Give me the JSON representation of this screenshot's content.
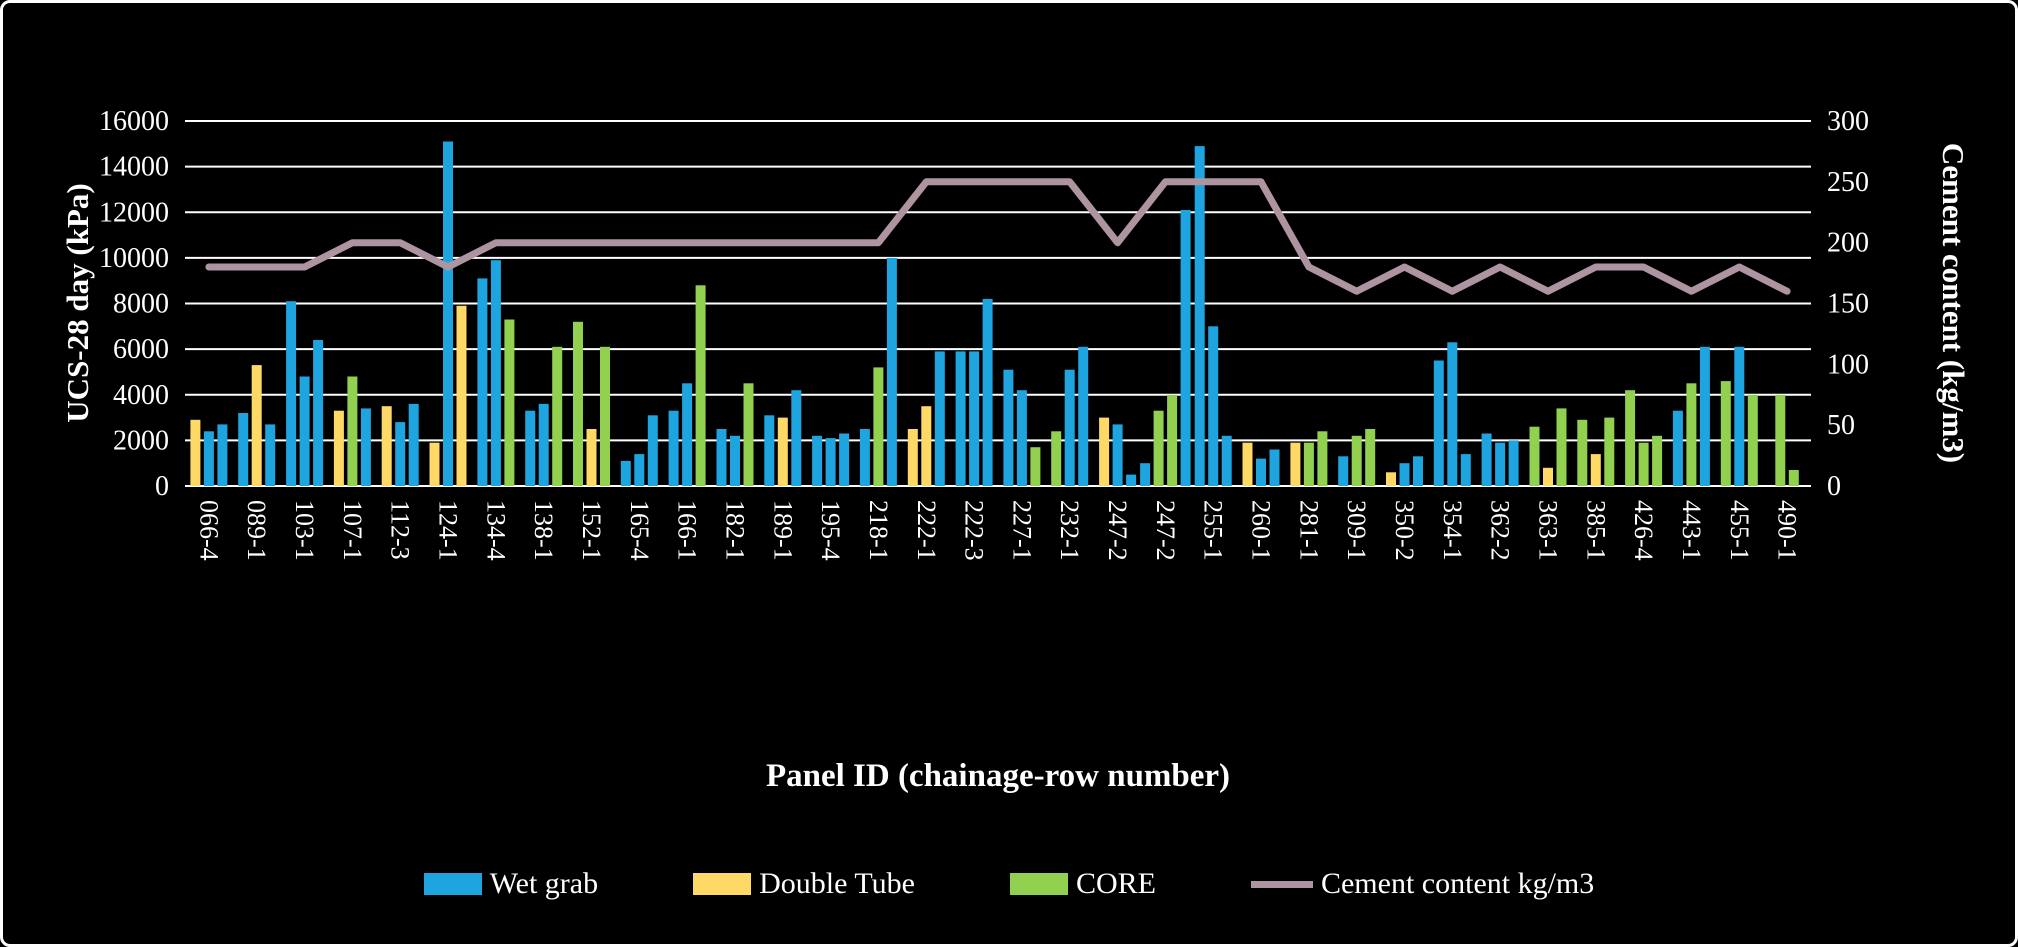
{
  "axes": {
    "left_title": "UCS-28 day (kPa)",
    "right_title": "Cement content (kg/m3)",
    "x_title": "Panel ID (chainage-row number)"
  },
  "legend": {
    "items": [
      {
        "label": "Wet grab",
        "marker": "swatch",
        "color": "#1EA4DF"
      },
      {
        "label": "Double Tube",
        "marker": "swatch",
        "color": "#FFD966"
      },
      {
        "label": "CORE",
        "marker": "swatch",
        "color": "#92D050"
      },
      {
        "label": "Cement content kg/m3",
        "marker": "line",
        "color": "#AE93A0"
      }
    ]
  },
  "chart_data": {
    "type": "bar+line",
    "grid_color": "#FFFFFF",
    "text_color": "#FFFFFF",
    "y_left": {
      "label": "UCS-28 day (kPa)",
      "min": 0,
      "max": 16000,
      "step": 2000,
      "ticks": [
        0,
        2000,
        4000,
        6000,
        8000,
        10000,
        12000,
        14000,
        16000
      ]
    },
    "y_right": {
      "label": "Cement content (kg/m3)",
      "min": 0,
      "max": 300,
      "step": 50,
      "ticks": [
        0,
        50,
        100,
        150,
        200,
        250,
        300
      ]
    },
    "bar_series": [
      "Wet grab",
      "Double Tube",
      "CORE"
    ],
    "bar_series_colors": {
      "Wet grab": "#1EA4DF",
      "Double Tube": "#FFD966",
      "CORE": "#92D050"
    },
    "line_series": {
      "name": "Cement content kg/m3",
      "axis": "right",
      "color": "#AE93A0"
    },
    "categories": [
      {
        "label": "066-4",
        "cement": 180,
        "bars": [
          [
            "Double Tube",
            2900
          ],
          [
            "Wet grab",
            2400
          ],
          [
            "Wet grab",
            2700
          ]
        ]
      },
      {
        "label": "089-1",
        "cement": 180,
        "bars": [
          [
            "Wet grab",
            3200
          ],
          [
            "Double Tube",
            5300
          ],
          [
            "Wet grab",
            2700
          ]
        ]
      },
      {
        "label": "103-1",
        "cement": 180,
        "bars": [
          [
            "Wet grab",
            8100
          ],
          [
            "Wet grab",
            4800
          ],
          [
            "Wet grab",
            6400
          ]
        ]
      },
      {
        "label": "107-1",
        "cement": 200,
        "bars": [
          [
            "Double Tube",
            3300
          ],
          [
            "CORE",
            4800
          ],
          [
            "Wet grab",
            3400
          ]
        ]
      },
      {
        "label": "112-3",
        "cement": 200,
        "bars": [
          [
            "Double Tube",
            3500
          ],
          [
            "Wet grab",
            2800
          ],
          [
            "Wet grab",
            3600
          ]
        ]
      },
      {
        "label": "124-1",
        "cement": 180,
        "bars": [
          [
            "Double Tube",
            1900
          ],
          [
            "Wet grab",
            15100
          ],
          [
            "Double Tube",
            7900
          ]
        ]
      },
      {
        "label": "134-4",
        "cement": 200,
        "bars": [
          [
            "Wet grab",
            9100
          ],
          [
            "Wet grab",
            9900
          ],
          [
            "CORE",
            7300
          ]
        ]
      },
      {
        "label": "138-1",
        "cement": 200,
        "bars": [
          [
            "Wet grab",
            3300
          ],
          [
            "Wet grab",
            3600
          ],
          [
            "CORE",
            6100
          ]
        ]
      },
      {
        "label": "152-1",
        "cement": 200,
        "bars": [
          [
            "CORE",
            7200
          ],
          [
            "Double Tube",
            2500
          ],
          [
            "CORE",
            6100
          ]
        ]
      },
      {
        "label": "165-4",
        "cement": 200,
        "bars": [
          [
            "Wet grab",
            1100
          ],
          [
            "Wet grab",
            1400
          ],
          [
            "Wet grab",
            3100
          ]
        ]
      },
      {
        "label": "166-1",
        "cement": 200,
        "bars": [
          [
            "Wet grab",
            3300
          ],
          [
            "Wet grab",
            4500
          ],
          [
            "CORE",
            8800
          ]
        ]
      },
      {
        "label": "182-1",
        "cement": 200,
        "bars": [
          [
            "Wet grab",
            2500
          ],
          [
            "Wet grab",
            2200
          ],
          [
            "CORE",
            4500
          ]
        ]
      },
      {
        "label": "189-1",
        "cement": 200,
        "bars": [
          [
            "Wet grab",
            3100
          ],
          [
            "Double Tube",
            3000
          ],
          [
            "Wet grab",
            4200
          ]
        ]
      },
      {
        "label": "195-4",
        "cement": 200,
        "bars": [
          [
            "Wet grab",
            2200
          ],
          [
            "Wet grab",
            2100
          ],
          [
            "Wet grab",
            2300
          ]
        ]
      },
      {
        "label": "218-1",
        "cement": 200,
        "bars": [
          [
            "Wet grab",
            2500
          ],
          [
            "CORE",
            5200
          ],
          [
            "Wet grab",
            10000
          ]
        ]
      },
      {
        "label": "222-1",
        "cement": 250,
        "bars": [
          [
            "Double Tube",
            2500
          ],
          [
            "Double Tube",
            3500
          ],
          [
            "Wet grab",
            5900
          ]
        ]
      },
      {
        "label": "222-3",
        "cement": 250,
        "bars": [
          [
            "Wet grab",
            5900
          ],
          [
            "Wet grab",
            5900
          ],
          [
            "Wet grab",
            8200
          ]
        ]
      },
      {
        "label": "227-1",
        "cement": 250,
        "bars": [
          [
            "Wet grab",
            5100
          ],
          [
            "Wet grab",
            4200
          ],
          [
            "CORE",
            1700
          ]
        ]
      },
      {
        "label": "232-1",
        "cement": 250,
        "bars": [
          [
            "CORE",
            2400
          ],
          [
            "Wet grab",
            5100
          ],
          [
            "Wet grab",
            6100
          ]
        ]
      },
      {
        "label": "247-2",
        "cement": 200,
        "bars": [
          [
            "Double Tube",
            3000
          ],
          [
            "Wet grab",
            2700
          ],
          [
            "Wet grab",
            500
          ]
        ]
      },
      {
        "label": "247-2",
        "cement": 250,
        "bars": [
          [
            "Wet grab",
            1000
          ],
          [
            "CORE",
            3300
          ],
          [
            "CORE",
            4000
          ],
          [
            "Wet grab",
            12100
          ]
        ]
      },
      {
        "label": "255-1",
        "cement": 250,
        "bars": [
          [
            "Wet grab",
            14900
          ],
          [
            "Wet grab",
            7000
          ],
          [
            "Wet grab",
            2200
          ]
        ]
      },
      {
        "label": "260-1",
        "cement": 250,
        "bars": [
          [
            "Double Tube",
            1900
          ],
          [
            "Wet grab",
            1200
          ],
          [
            "Wet grab",
            1600
          ]
        ]
      },
      {
        "label": "281-1",
        "cement": 180,
        "bars": [
          [
            "Double Tube",
            1900
          ],
          [
            "CORE",
            1900
          ],
          [
            "CORE",
            2400
          ]
        ]
      },
      {
        "label": "309-1",
        "cement": 160,
        "bars": [
          [
            "Wet grab",
            1300
          ],
          [
            "CORE",
            2200
          ],
          [
            "CORE",
            2500
          ]
        ]
      },
      {
        "label": "350-2",
        "cement": 180,
        "bars": [
          [
            "Double Tube",
            600
          ],
          [
            "Wet grab",
            1000
          ],
          [
            "Wet grab",
            1300
          ]
        ]
      },
      {
        "label": "354-1",
        "cement": 160,
        "bars": [
          [
            "Wet grab",
            5500
          ],
          [
            "Wet grab",
            6300
          ],
          [
            "Wet grab",
            1400
          ]
        ]
      },
      {
        "label": "362-2",
        "cement": 180,
        "bars": [
          [
            "Wet grab",
            2300
          ],
          [
            "Wet grab",
            1900
          ],
          [
            "Wet grab",
            2000
          ]
        ]
      },
      {
        "label": "363-1",
        "cement": 160,
        "bars": [
          [
            "CORE",
            2600
          ],
          [
            "Double Tube",
            800
          ],
          [
            "CORE",
            3400
          ]
        ]
      },
      {
        "label": "385-1",
        "cement": 180,
        "bars": [
          [
            "CORE",
            2900
          ],
          [
            "Double Tube",
            1400
          ],
          [
            "CORE",
            3000
          ]
        ]
      },
      {
        "label": "426-4",
        "cement": 180,
        "bars": [
          [
            "CORE",
            4200
          ],
          [
            "CORE",
            1900
          ],
          [
            "CORE",
            2200
          ]
        ]
      },
      {
        "label": "443-1",
        "cement": 160,
        "bars": [
          [
            "Wet grab",
            3300
          ],
          [
            "CORE",
            4500
          ],
          [
            "Wet grab",
            6100
          ]
        ]
      },
      {
        "label": "455-1",
        "cement": 180,
        "bars": [
          [
            "CORE",
            4600
          ],
          [
            "Wet grab",
            6100
          ],
          [
            "CORE",
            4000
          ]
        ]
      },
      {
        "label": "490-1",
        "cement": 160,
        "bars": [
          [
            "CORE",
            4000
          ],
          [
            "CORE",
            700
          ]
        ]
      }
    ]
  }
}
